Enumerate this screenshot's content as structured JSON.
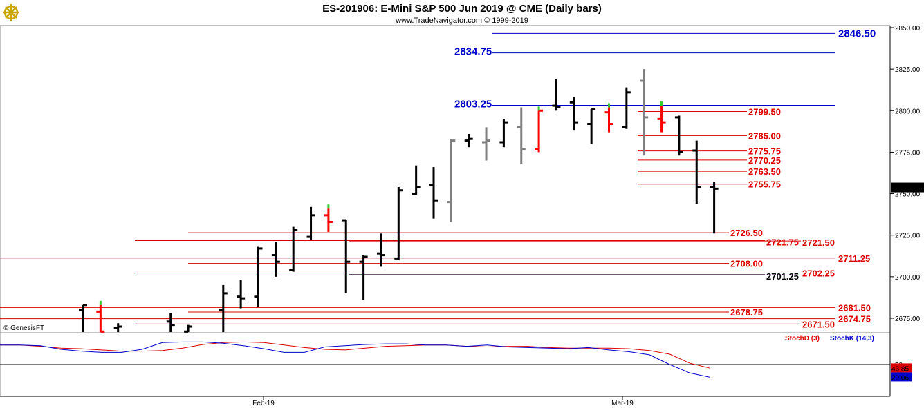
{
  "header": {
    "title": "ES-201906:  E-Mini S&P 500 Jun 2019 @ CME  (Daily bars)",
    "subtitle": "www.TradeNavigator.com © 1999-2019"
  },
  "watermark": "© GenesisFT",
  "logo_icon": "ship-wheel-logo-icon",
  "colors": {
    "up": "#000000",
    "down": "#000000",
    "gray": "#808080",
    "red_bar": "#ff0000",
    "green_tick": "#33cc33",
    "blue_level": "#0000cc",
    "red_level": "#dd0000",
    "stoch_d": "#dd0000",
    "stoch_k": "#0000cc",
    "last_price_bg": "#000000"
  },
  "chart_data": {
    "type": "ohlc",
    "title": "ES-201906:  E-Mini S&P 500 Jun 2019 @ CME  (Daily bars)",
    "x_ticks": [
      "Feb-19",
      "Mar-19"
    ],
    "y_ticks": [
      "2850.00",
      "2825.00",
      "2800.00",
      "2775.00",
      "2750.00",
      "2725.00",
      "2700.00",
      "2675.00"
    ],
    "ylim": [
      2665,
      2855
    ],
    "last_price": "2753.75",
    "bars": [
      {
        "d": 0,
        "o": 2680,
        "h": 2683,
        "l": 2665,
        "c": 2683,
        "color": "black"
      },
      {
        "d": 1,
        "o": 2679,
        "h": 2683,
        "l": 2665,
        "c": 2667,
        "color": "red"
      },
      {
        "d": 2,
        "o": 2669,
        "h": 2672,
        "l": 2665,
        "c": 2670,
        "color": "black"
      },
      {
        "d": 5,
        "o": 2673,
        "h": 2678,
        "l": 2665,
        "c": 2671,
        "color": "black"
      },
      {
        "d": 6,
        "o": 2667,
        "h": 2671,
        "l": 2665,
        "c": 2670,
        "color": "black"
      },
      {
        "d": 8,
        "o": 2680,
        "h": 2695,
        "l": 2665,
        "c": 2690,
        "color": "black"
      },
      {
        "d": 9,
        "o": 2688,
        "h": 2698,
        "l": 2681,
        "c": 2687,
        "color": "black"
      },
      {
        "d": 10,
        "o": 2688,
        "h": 2718,
        "l": 2682,
        "c": 2717,
        "color": "black"
      },
      {
        "d": 11,
        "o": 2713,
        "h": 2721,
        "l": 2700,
        "c": 2709,
        "color": "black"
      },
      {
        "d": 12,
        "o": 2704,
        "h": 2730,
        "l": 2703,
        "c": 2728,
        "color": "black"
      },
      {
        "d": 13,
        "o": 2724,
        "h": 2742,
        "l": 2722,
        "c": 2737,
        "color": "black"
      },
      {
        "d": 14,
        "o": 2737,
        "h": 2741,
        "l": 2727,
        "c": 2733,
        "color": "red"
      },
      {
        "d": 15,
        "o": 2734,
        "h": 2734,
        "l": 2690,
        "c": 2709,
        "color": "black"
      },
      {
        "d": 16,
        "o": 2709,
        "h": 2713,
        "l": 2686,
        "c": 2712,
        "color": "black"
      },
      {
        "d": 17,
        "o": 2714,
        "h": 2726,
        "l": 2706,
        "c": 2713,
        "color": "black"
      },
      {
        "d": 18,
        "o": 2711,
        "h": 2754,
        "l": 2710,
        "c": 2752,
        "color": "black"
      },
      {
        "d": 19,
        "o": 2750,
        "h": 2767,
        "l": 2749,
        "c": 2754,
        "color": "black"
      },
      {
        "d": 20,
        "o": 2755,
        "h": 2766,
        "l": 2735,
        "c": 2746,
        "color": "black"
      },
      {
        "d": 21,
        "o": 2745,
        "h": 2783,
        "l": 2733,
        "c": 2782,
        "color": "gray"
      },
      {
        "d": 22,
        "o": 2782,
        "h": 2786,
        "l": 2778,
        "c": 2783,
        "color": "black"
      },
      {
        "d": 23,
        "o": 2781,
        "h": 2790,
        "l": 2770,
        "c": 2782,
        "color": "gray"
      },
      {
        "d": 24,
        "o": 2781,
        "h": 2795,
        "l": 2778,
        "c": 2793,
        "color": "black"
      },
      {
        "d": 25,
        "o": 2790,
        "h": 2802,
        "l": 2768,
        "c": 2777,
        "color": "gray"
      },
      {
        "d": 26,
        "o": 2777,
        "h": 2800,
        "l": 2775,
        "c": 2800,
        "color": "red"
      },
      {
        "d": 27,
        "o": 2803,
        "h": 2819,
        "l": 2800,
        "c": 2802,
        "color": "black"
      },
      {
        "d": 28,
        "o": 2805,
        "h": 2808,
        "l": 2788,
        "c": 2793,
        "color": "black"
      },
      {
        "d": 29,
        "o": 2792,
        "h": 2801,
        "l": 2780,
        "c": 2801,
        "color": "black"
      },
      {
        "d": 30,
        "o": 2799,
        "h": 2802,
        "l": 2787,
        "c": 2792,
        "color": "red"
      },
      {
        "d": 31,
        "o": 2790,
        "h": 2814,
        "l": 2789,
        "c": 2811,
        "color": "black"
      },
      {
        "d": 32,
        "o": 2818,
        "h": 2825,
        "l": 2773,
        "c": 2796,
        "color": "gray"
      },
      {
        "d": 33,
        "o": 2795,
        "h": 2803,
        "l": 2787,
        "c": 2793,
        "color": "red"
      },
      {
        "d": 34,
        "o": 2796,
        "h": 2797,
        "l": 2773,
        "c": 2775,
        "color": "black"
      },
      {
        "d": 35,
        "o": 2776,
        "h": 2782,
        "l": 2744,
        "c": 2754,
        "color": "black"
      },
      {
        "d": 36,
        "o": 2754,
        "h": 2757,
        "l": 2726,
        "c": 2753,
        "color": "black"
      }
    ],
    "levels": [
      {
        "price": 2846.5,
        "label": "2846.50",
        "color": "blue",
        "size": "big"
      },
      {
        "price": 2834.75,
        "label": "2834.75",
        "color": "blue",
        "size": "big"
      },
      {
        "price": 2803.25,
        "label": "2803.25",
        "color": "blue",
        "size": "big"
      },
      {
        "price": 2799.5,
        "label": "2799.50",
        "color": "red"
      },
      {
        "price": 2785.0,
        "label": "2785.00",
        "color": "red"
      },
      {
        "price": 2775.75,
        "label": "2775.75",
        "color": "red"
      },
      {
        "price": 2770.25,
        "label": "2770.25",
        "color": "red"
      },
      {
        "price": 2763.5,
        "label": "2763.50",
        "color": "red"
      },
      {
        "price": 2755.75,
        "label": "2755.75",
        "color": "red"
      },
      {
        "price": 2726.5,
        "label": "2726.50",
        "color": "red"
      },
      {
        "price": 2721.75,
        "label": "2721.75",
        "color": "red"
      },
      {
        "price": 2721.5,
        "label": "2721.50",
        "color": "red"
      },
      {
        "price": 2711.25,
        "label": "2711.25",
        "color": "red"
      },
      {
        "price": 2708.0,
        "label": "2708.00",
        "color": "red"
      },
      {
        "price": 2702.25,
        "label": "2702.25",
        "color": "red"
      },
      {
        "price": 2701.25,
        "label": "2701.25",
        "color": "black"
      },
      {
        "price": 2681.5,
        "label": "2681.50",
        "color": "red"
      },
      {
        "price": 2678.75,
        "label": "2678.75",
        "color": "red"
      },
      {
        "price": 2674.75,
        "label": "2674.75",
        "color": "red"
      },
      {
        "price": 2671.5,
        "label": "2671.50",
        "color": "red"
      }
    ],
    "indicator": {
      "stochd_label": "StochD (3)",
      "stochk_label": "StochK (14,3)",
      "tick_label": "50",
      "stochd_value": "43.85",
      "stochk_value": "29.06",
      "stochd": [
        82,
        82,
        80,
        77,
        76,
        74,
        72,
        72,
        73,
        77,
        83,
        86,
        87,
        86,
        82,
        78,
        75,
        74,
        77,
        80,
        81,
        82,
        82,
        80,
        79,
        80,
        80,
        78,
        77,
        77,
        77,
        76,
        73,
        67,
        52,
        44
      ],
      "stochk": [
        82,
        82,
        81,
        75,
        72,
        70,
        70,
        75,
        86,
        87,
        87,
        85,
        81,
        76,
        70,
        70,
        79,
        81,
        83,
        84,
        84,
        82,
        82,
        80,
        82,
        79,
        78,
        77,
        76,
        78,
        74,
        71,
        66,
        50,
        36,
        29
      ]
    }
  }
}
